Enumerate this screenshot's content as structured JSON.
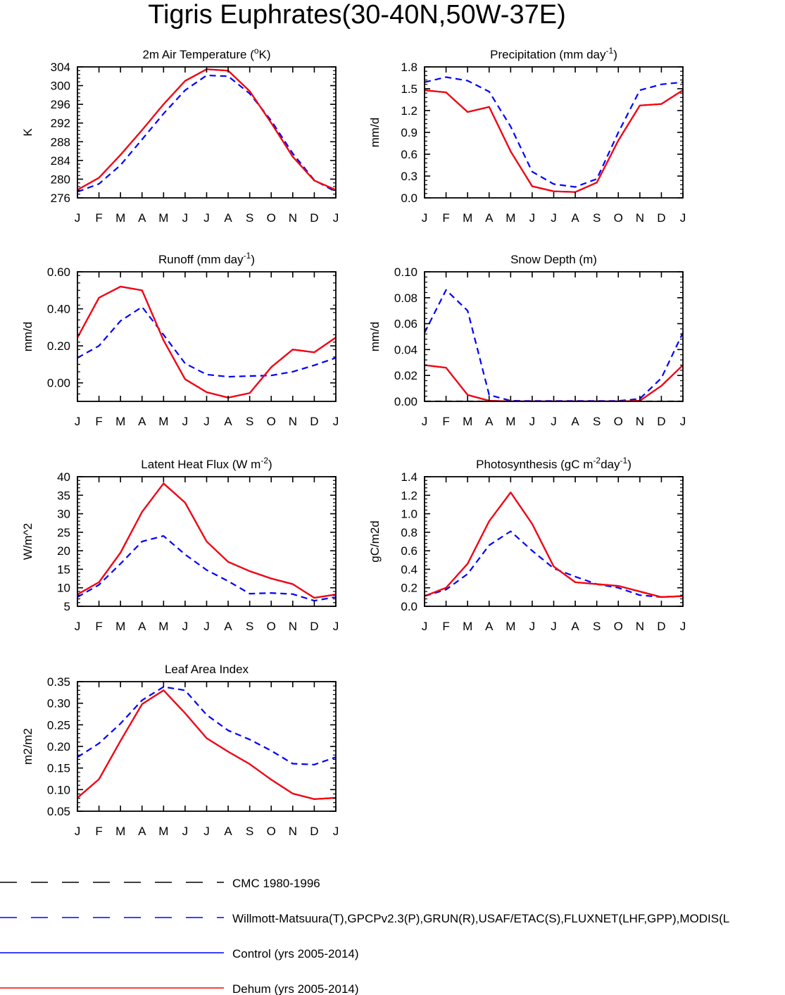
{
  "figure": {
    "title": "Tigris Euphrates(30-40N,50W-37E)"
  },
  "legend": [
    {
      "label": "CMC 1980-1996",
      "color": "#000000",
      "style": "dashed"
    },
    {
      "label": "Willmott-Matsuura(T),GPCPv2.3(P),GRUN(R),USAF/ETAC(S),FLUXNET(LHF,GPP),MODIS(L",
      "color": "#0000ff",
      "style": "dashed"
    },
    {
      "label": "Control (yrs 2005-2014)",
      "color": "#0000ff",
      "style": "solid"
    },
    {
      "label": "Dehum (yrs 2005-2014)",
      "color": "#ff0000",
      "style": "solid"
    }
  ],
  "chart_data": [
    {
      "type": "line",
      "title": "2m Air Temperature (oK)",
      "title_parts": [
        {
          "t": "2m Air Temperature ("
        },
        {
          "t": "o",
          "sup": true
        },
        {
          "t": "K)"
        }
      ],
      "ylabel": "K",
      "ylim": [
        276,
        304
      ],
      "yticks": [
        276,
        280,
        284,
        288,
        292,
        296,
        300,
        304
      ],
      "ytick_labels": [
        "276",
        "280",
        "284",
        "288",
        "292",
        "296",
        "300",
        "304"
      ],
      "categories": [
        "J",
        "F",
        "M",
        "A",
        "M",
        "J",
        "J",
        "A",
        "S",
        "O",
        "N",
        "D",
        "J"
      ],
      "series": [
        {
          "style": "dashed",
          "color": "#0000ff",
          "values": [
            277.3,
            279.0,
            283.0,
            288.5,
            294.0,
            299.0,
            302.2,
            302.0,
            298.3,
            292.5,
            285.5,
            279.8,
            277.3
          ]
        },
        {
          "style": "solid",
          "color": "#0000ff",
          "values": [
            277.7,
            280.3,
            285.2,
            290.5,
            296.0,
            301.0,
            303.5,
            303.2,
            298.8,
            292.0,
            284.8,
            279.7,
            277.7
          ]
        },
        {
          "style": "solid",
          "color": "#ff0000",
          "values": [
            277.7,
            280.3,
            285.2,
            290.5,
            296.0,
            301.0,
            303.5,
            303.2,
            298.8,
            292.0,
            284.8,
            279.7,
            277.7
          ]
        }
      ]
    },
    {
      "type": "line",
      "title": "Precipitation (mm day-1)",
      "title_parts": [
        {
          "t": "Precipitation (mm day"
        },
        {
          "t": "-1",
          "sup": true
        },
        {
          "t": ")"
        }
      ],
      "ylabel": "mm/d",
      "ylim": [
        0,
        1.8
      ],
      "yticks": [
        0,
        0.3,
        0.6,
        0.9,
        1.2,
        1.5,
        1.8
      ],
      "ytick_labels": [
        "0.0",
        "0.3",
        "0.6",
        "0.9",
        "1.2",
        "1.5",
        "1.8"
      ],
      "categories": [
        "J",
        "F",
        "M",
        "A",
        "M",
        "J",
        "J",
        "A",
        "S",
        "O",
        "N",
        "D",
        "J"
      ],
      "series": [
        {
          "style": "dashed",
          "color": "#0000ff",
          "values": [
            1.59,
            1.66,
            1.61,
            1.46,
            0.98,
            0.36,
            0.19,
            0.15,
            0.26,
            0.9,
            1.48,
            1.56,
            1.59
          ]
        },
        {
          "style": "solid",
          "color": "#0000ff",
          "values": [
            1.48,
            1.45,
            1.18,
            1.25,
            0.64,
            0.16,
            0.09,
            0.08,
            0.21,
            0.79,
            1.27,
            1.29,
            1.48
          ]
        },
        {
          "style": "solid",
          "color": "#ff0000",
          "values": [
            1.48,
            1.45,
            1.18,
            1.25,
            0.64,
            0.16,
            0.09,
            0.08,
            0.21,
            0.79,
            1.27,
            1.29,
            1.48
          ]
        }
      ]
    },
    {
      "type": "line",
      "title": "Runoff (mm day-1)",
      "title_parts": [
        {
          "t": "Runoff (mm day"
        },
        {
          "t": "-1",
          "sup": true
        },
        {
          "t": ")"
        }
      ],
      "ylabel": "mm/d",
      "ylim": [
        -0.1,
        0.6
      ],
      "yticks": [
        0,
        0.2,
        0.4,
        0.6
      ],
      "ytick_labels": [
        "0.00",
        "0.20",
        "0.40",
        "0.60"
      ],
      "categories": [
        "J",
        "F",
        "M",
        "A",
        "M",
        "J",
        "J",
        "A",
        "S",
        "O",
        "N",
        "D",
        "J"
      ],
      "series": [
        {
          "style": "dashed",
          "color": "#0000ff",
          "values": [
            0.135,
            0.2,
            0.335,
            0.41,
            0.26,
            0.105,
            0.045,
            0.033,
            0.037,
            0.04,
            0.06,
            0.095,
            0.135
          ]
        },
        {
          "style": "solid",
          "color": "#0000ff",
          "values": [
            0.245,
            0.46,
            0.52,
            0.5,
            0.23,
            0.02,
            -0.05,
            -0.08,
            -0.055,
            0.085,
            0.18,
            0.165,
            0.245
          ]
        },
        {
          "style": "solid",
          "color": "#ff0000",
          "values": [
            0.245,
            0.46,
            0.52,
            0.5,
            0.23,
            0.02,
            -0.05,
            -0.08,
            -0.055,
            0.085,
            0.18,
            0.165,
            0.245
          ]
        }
      ]
    },
    {
      "type": "line",
      "title": "Snow Depth (m)",
      "title_parts": [
        {
          "t": "Snow Depth (m)"
        }
      ],
      "ylabel": "mm/d",
      "ylim": [
        0,
        0.1
      ],
      "yticks": [
        0,
        0.02,
        0.04,
        0.06,
        0.08,
        0.1
      ],
      "ytick_labels": [
        "0.00",
        "0.02",
        "0.04",
        "0.06",
        "0.08",
        "0.10"
      ],
      "categories": [
        "J",
        "F",
        "M",
        "A",
        "M",
        "J",
        "J",
        "A",
        "S",
        "O",
        "N",
        "D",
        "J"
      ],
      "series": [
        {
          "style": "dashed",
          "color": "#000000",
          "values": [
            0,
            0,
            0,
            0,
            0,
            0,
            0,
            0,
            0,
            0,
            0,
            0,
            0
          ]
        },
        {
          "style": "dashed",
          "color": "#0000ff",
          "values": [
            0.053,
            0.086,
            0.07,
            0.005,
            0.0005,
            0.0003,
            0.0003,
            0.0003,
            0.0003,
            0.0004,
            0.002,
            0.018,
            0.053
          ]
        },
        {
          "style": "solid",
          "color": "#0000ff",
          "values": [
            0.028,
            0.026,
            0.005,
            0.0005,
            0,
            0,
            0,
            0,
            0,
            0,
            0.0005,
            0.012,
            0.028
          ]
        },
        {
          "style": "solid",
          "color": "#ff0000",
          "values": [
            0.028,
            0.026,
            0.005,
            0.0005,
            0,
            0,
            0,
            0,
            0,
            0,
            0.0005,
            0.012,
            0.028
          ]
        }
      ]
    },
    {
      "type": "line",
      "title": "Latent Heat Flux (W m-2)",
      "title_parts": [
        {
          "t": "Latent Heat Flux (W m"
        },
        {
          "t": "-2",
          "sup": true
        },
        {
          "t": ")"
        }
      ],
      "ylabel": "W/m^2",
      "ylim": [
        5,
        40
      ],
      "yticks": [
        5,
        10,
        15,
        20,
        25,
        30,
        35,
        40
      ],
      "ytick_labels": [
        "5",
        "10",
        "15",
        "20",
        "25",
        "30",
        "35",
        "40"
      ],
      "categories": [
        "J",
        "F",
        "M",
        "A",
        "M",
        "J",
        "J",
        "A",
        "S",
        "O",
        "N",
        "D",
        "J"
      ],
      "series": [
        {
          "style": "dashed",
          "color": "#0000ff",
          "values": [
            7.5,
            10.8,
            16.5,
            22.5,
            24.0,
            19.0,
            14.8,
            11.8,
            8.4,
            8.6,
            8.3,
            6.5,
            7.5
          ]
        },
        {
          "style": "solid",
          "color": "#0000ff",
          "values": [
            8.2,
            11.5,
            19.5,
            30.5,
            38.2,
            33.0,
            22.5,
            17.0,
            14.5,
            12.5,
            11.0,
            7.3,
            8.2
          ]
        },
        {
          "style": "solid",
          "color": "#ff0000",
          "values": [
            8.2,
            11.5,
            19.5,
            30.5,
            38.2,
            33.0,
            22.5,
            17.0,
            14.5,
            12.5,
            11.0,
            7.3,
            8.2
          ]
        }
      ]
    },
    {
      "type": "line",
      "title": "Photosynthesis (gC m-2day-1)",
      "title_parts": [
        {
          "t": "Photosynthesis (gC m"
        },
        {
          "t": "-2",
          "sup": true
        },
        {
          "t": "day"
        },
        {
          "t": "-1",
          "sup": true
        },
        {
          "t": ")"
        }
      ],
      "ylabel": "gC/m2d",
      "ylim": [
        0,
        1.4
      ],
      "yticks": [
        0,
        0.2,
        0.4,
        0.6,
        0.8,
        1.0,
        1.2,
        1.4
      ],
      "ytick_labels": [
        "0.0",
        "0.2",
        "0.4",
        "0.6",
        "0.8",
        "1.0",
        "1.2",
        "1.4"
      ],
      "categories": [
        "J",
        "F",
        "M",
        "A",
        "M",
        "J",
        "J",
        "A",
        "S",
        "O",
        "N",
        "D",
        "J"
      ],
      "series": [
        {
          "style": "dashed",
          "color": "#0000ff",
          "values": [
            0.11,
            0.18,
            0.35,
            0.66,
            0.81,
            0.6,
            0.41,
            0.32,
            0.24,
            0.2,
            0.12,
            0.1,
            0.11
          ]
        },
        {
          "style": "solid",
          "color": "#0000ff",
          "values": [
            0.11,
            0.2,
            0.46,
            0.92,
            1.23,
            0.89,
            0.43,
            0.26,
            0.24,
            0.22,
            0.16,
            0.1,
            0.11
          ]
        },
        {
          "style": "solid",
          "color": "#ff0000",
          "values": [
            0.11,
            0.2,
            0.46,
            0.92,
            1.23,
            0.89,
            0.43,
            0.26,
            0.24,
            0.22,
            0.16,
            0.1,
            0.11
          ]
        }
      ]
    },
    {
      "type": "line",
      "title": "Leaf Area Index",
      "title_parts": [
        {
          "t": "Leaf Area Index"
        }
      ],
      "ylabel": "m2/m2",
      "ylim": [
        0.05,
        0.35
      ],
      "yticks": [
        0.05,
        0.1,
        0.15,
        0.2,
        0.25,
        0.3,
        0.35
      ],
      "ytick_labels": [
        "0.05",
        "0.10",
        "0.15",
        "0.20",
        "0.25",
        "0.30",
        "0.35"
      ],
      "categories": [
        "J",
        "F",
        "M",
        "A",
        "M",
        "J",
        "J",
        "A",
        "S",
        "O",
        "N",
        "D",
        "J"
      ],
      "series": [
        {
          "style": "dashed",
          "color": "#0000ff",
          "values": [
            0.175,
            0.207,
            0.253,
            0.307,
            0.338,
            0.33,
            0.273,
            0.237,
            0.216,
            0.19,
            0.16,
            0.158,
            0.175
          ]
        },
        {
          "style": "solid",
          "color": "#0000ff",
          "values": [
            0.081,
            0.124,
            0.213,
            0.298,
            0.33,
            0.277,
            0.219,
            0.188,
            0.159,
            0.123,
            0.091,
            0.078,
            0.081
          ]
        },
        {
          "style": "solid",
          "color": "#ff0000",
          "values": [
            0.081,
            0.124,
            0.213,
            0.298,
            0.33,
            0.277,
            0.219,
            0.188,
            0.159,
            0.123,
            0.091,
            0.078,
            0.081
          ]
        }
      ]
    }
  ]
}
